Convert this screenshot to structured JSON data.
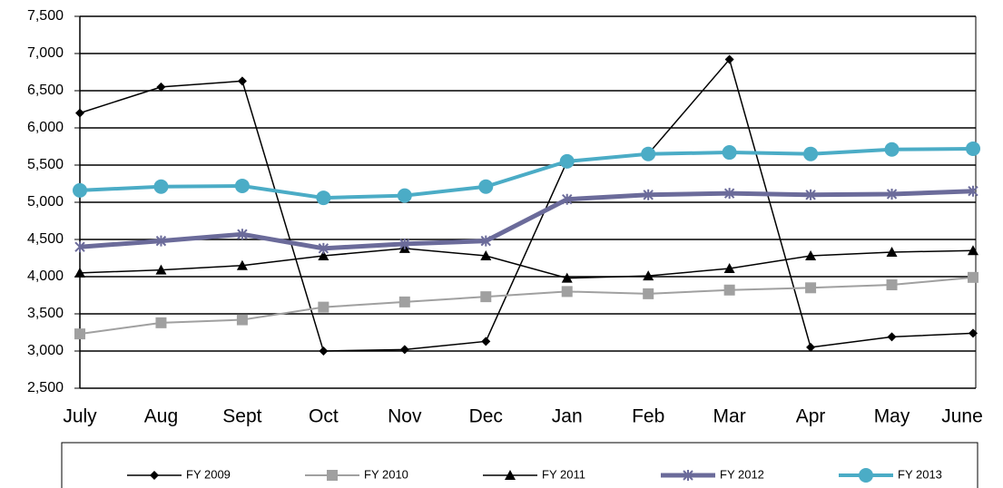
{
  "chart_data": {
    "type": "line",
    "categories": [
      "July",
      "Aug",
      "Sept",
      "Oct",
      "Nov",
      "Dec",
      "Jan",
      "Feb",
      "Mar",
      "Apr",
      "May",
      "June"
    ],
    "series": [
      {
        "name": "FY 2009",
        "color": "#000000",
        "marker": "diamond",
        "width": 1.5,
        "values": [
          6200,
          6550,
          6630,
          3000,
          3020,
          3130,
          5550,
          5650,
          6920,
          3050,
          3190,
          3240
        ]
      },
      {
        "name": "FY 2010",
        "color": "#a0a0a0",
        "marker": "square",
        "width": 2,
        "values": [
          3230,
          3380,
          3420,
          3590,
          3660,
          3730,
          3800,
          3770,
          3820,
          3850,
          3890,
          3990
        ]
      },
      {
        "name": "FY 2011",
        "color": "#000000",
        "marker": "triangle",
        "width": 1.5,
        "values": [
          4050,
          4090,
          4150,
          4280,
          4380,
          4280,
          3980,
          4010,
          4110,
          4280,
          4330,
          4350
        ]
      },
      {
        "name": "FY 2012",
        "color": "#6b6b9a",
        "marker": "x",
        "width": 5,
        "values": [
          4400,
          4480,
          4570,
          4380,
          4440,
          4480,
          5040,
          5100,
          5120,
          5100,
          5110,
          5150
        ]
      },
      {
        "name": "FY 2013",
        "color": "#4bacc6",
        "marker": "circle",
        "width": 4,
        "values": [
          5160,
          5210,
          5220,
          5060,
          5090,
          5210,
          5550,
          5650,
          5670,
          5650,
          5710,
          5720
        ]
      }
    ],
    "ylim": [
      2500,
      7500
    ],
    "yticks": [
      {
        "value": 2500,
        "label": "2,500"
      },
      {
        "value": 3000,
        "label": "3,000"
      },
      {
        "value": 3500,
        "label": "3,500"
      },
      {
        "value": 4000,
        "label": "4,000"
      },
      {
        "value": 4500,
        "label": "4,500"
      },
      {
        "value": 5000,
        "label": "5,000"
      },
      {
        "value": 5500,
        "label": "5,500"
      },
      {
        "value": 6000,
        "label": "6,000"
      },
      {
        "value": 6500,
        "label": "6,500"
      },
      {
        "value": 7000,
        "label": "7,000"
      },
      {
        "value": 7500,
        "label": "7,500"
      }
    ],
    "grid": true,
    "legend": "bottom"
  }
}
